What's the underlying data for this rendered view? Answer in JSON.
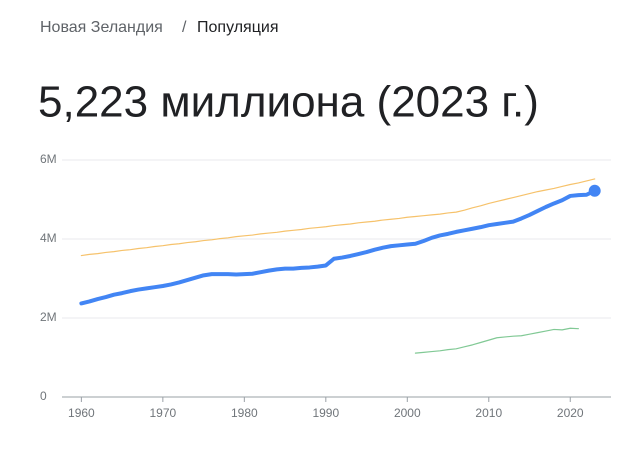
{
  "breadcrumb": {
    "parent": "Новая Зеландия",
    "separator": "/",
    "current": "Популяция"
  },
  "headline": "5,223 миллиона (2023 г.)",
  "chart_data": {
    "type": "line",
    "x": [
      1960,
      1961,
      1962,
      1963,
      1964,
      1965,
      1966,
      1967,
      1968,
      1969,
      1970,
      1971,
      1972,
      1973,
      1974,
      1975,
      1976,
      1977,
      1978,
      1979,
      1980,
      1981,
      1982,
      1983,
      1984,
      1985,
      1986,
      1987,
      1988,
      1989,
      1990,
      1991,
      1992,
      1993,
      1994,
      1995,
      1996,
      1997,
      1998,
      1999,
      2000,
      2001,
      2002,
      2003,
      2004,
      2005,
      2006,
      2007,
      2008,
      2009,
      2010,
      2011,
      2012,
      2013,
      2014,
      2015,
      2016,
      2017,
      2018,
      2019,
      2020,
      2021,
      2022,
      2023
    ],
    "series": [
      {
        "color": "#f6c26b",
        "width": 1.2,
        "values": [
          3.58,
          3.61,
          3.63,
          3.66,
          3.68,
          3.71,
          3.73,
          3.76,
          3.78,
          3.81,
          3.83,
          3.86,
          3.88,
          3.91,
          3.93,
          3.96,
          3.98,
          4.01,
          4.03,
          4.06,
          4.08,
          4.1,
          4.13,
          4.15,
          4.17,
          4.2,
          4.22,
          4.24,
          4.27,
          4.29,
          4.31,
          4.34,
          4.36,
          4.38,
          4.41,
          4.43,
          4.45,
          4.48,
          4.5,
          4.52,
          4.55,
          4.57,
          4.59,
          4.61,
          4.63,
          4.66,
          4.68,
          4.73,
          4.79,
          4.84,
          4.9,
          4.95,
          5.0,
          5.05,
          5.1,
          5.15,
          5.2,
          5.24,
          5.28,
          5.33,
          5.38,
          5.42,
          5.47,
          5.52
        ]
      },
      {
        "color": "#81c995",
        "width": 1.2,
        "values": [
          null,
          null,
          null,
          null,
          null,
          null,
          null,
          null,
          null,
          null,
          null,
          null,
          null,
          null,
          null,
          null,
          null,
          null,
          null,
          null,
          null,
          null,
          null,
          null,
          null,
          null,
          null,
          null,
          null,
          null,
          null,
          null,
          null,
          null,
          null,
          null,
          null,
          null,
          null,
          null,
          null,
          1.11,
          1.13,
          1.15,
          1.17,
          1.2,
          1.22,
          1.27,
          1.32,
          1.38,
          1.44,
          1.5,
          1.52,
          1.54,
          1.55,
          1.59,
          1.63,
          1.67,
          1.71,
          1.7,
          1.74,
          1.73,
          null,
          null
        ]
      },
      {
        "color": "#4285f4",
        "width": 4,
        "end_marker": true,
        "values": [
          2.37,
          2.42,
          2.48,
          2.53,
          2.59,
          2.63,
          2.68,
          2.72,
          2.75,
          2.78,
          2.81,
          2.85,
          2.9,
          2.96,
          3.02,
          3.08,
          3.11,
          3.11,
          3.11,
          3.1,
          3.11,
          3.12,
          3.16,
          3.2,
          3.23,
          3.25,
          3.25,
          3.27,
          3.28,
          3.3,
          3.33,
          3.5,
          3.53,
          3.57,
          3.62,
          3.67,
          3.73,
          3.78,
          3.82,
          3.84,
          3.86,
          3.88,
          3.95,
          4.03,
          4.09,
          4.13,
          4.18,
          4.22,
          4.26,
          4.3,
          4.35,
          4.38,
          4.41,
          4.44,
          4.52,
          4.61,
          4.71,
          4.81,
          4.9,
          4.98,
          5.09,
          5.11,
          5.12,
          5.22
        ]
      }
    ],
    "xlim": [
      1957.5,
      2025
    ],
    "xticks": [
      1960,
      1970,
      1980,
      1990,
      2000,
      2010,
      2020
    ],
    "ylim": [
      0,
      6
    ],
    "yticks": [
      0,
      {
        "value": 2,
        "label": "2M"
      },
      {
        "value": 4,
        "label": "4M"
      },
      {
        "value": 6,
        "label": "6M"
      }
    ],
    "grid": true
  }
}
